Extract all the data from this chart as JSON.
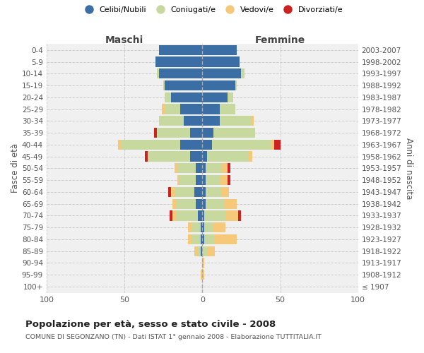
{
  "age_groups": [
    "0-4",
    "5-9",
    "10-14",
    "15-19",
    "20-24",
    "25-29",
    "30-34",
    "35-39",
    "40-44",
    "45-49",
    "50-54",
    "55-59",
    "60-64",
    "65-69",
    "70-74",
    "75-79",
    "80-84",
    "85-89",
    "90-94",
    "95-99",
    "100+"
  ],
  "birth_years": [
    "2003-2007",
    "1998-2002",
    "1993-1997",
    "1988-1992",
    "1983-1987",
    "1978-1982",
    "1973-1977",
    "1968-1972",
    "1963-1967",
    "1958-1962",
    "1953-1957",
    "1948-1952",
    "1943-1947",
    "1938-1942",
    "1933-1937",
    "1928-1932",
    "1923-1927",
    "1918-1922",
    "1913-1917",
    "1908-1912",
    "≤ 1907"
  ],
  "maschi_celibi": [
    28,
    30,
    28,
    24,
    20,
    14,
    12,
    8,
    14,
    8,
    4,
    4,
    5,
    4,
    3,
    1,
    1,
    1,
    0,
    0,
    0
  ],
  "maschi_coniugati": [
    0,
    0,
    1,
    1,
    4,
    10,
    16,
    21,
    38,
    27,
    12,
    11,
    13,
    13,
    14,
    6,
    6,
    2,
    0,
    0,
    0
  ],
  "maschi_vedovi": [
    0,
    0,
    0,
    0,
    0,
    2,
    0,
    0,
    2,
    0,
    2,
    1,
    2,
    2,
    2,
    2,
    2,
    2,
    0,
    1,
    0
  ],
  "maschi_divorziati": [
    0,
    0,
    0,
    0,
    0,
    0,
    0,
    2,
    0,
    2,
    0,
    0,
    2,
    0,
    2,
    0,
    0,
    0,
    0,
    0,
    0
  ],
  "femmine_nubili": [
    22,
    24,
    25,
    21,
    16,
    11,
    11,
    7,
    6,
    3,
    2,
    2,
    2,
    2,
    1,
    1,
    1,
    0,
    0,
    0,
    0
  ],
  "femmine_coniugate": [
    0,
    0,
    2,
    1,
    4,
    10,
    20,
    27,
    38,
    27,
    10,
    9,
    10,
    12,
    14,
    6,
    7,
    3,
    0,
    0,
    0
  ],
  "femmine_vedove": [
    0,
    0,
    0,
    0,
    0,
    0,
    2,
    0,
    2,
    2,
    4,
    5,
    5,
    8,
    8,
    8,
    14,
    5,
    1,
    1,
    0
  ],
  "femmine_divorziate": [
    0,
    0,
    0,
    0,
    0,
    0,
    0,
    0,
    4,
    0,
    2,
    2,
    0,
    0,
    2,
    0,
    0,
    0,
    0,
    0,
    0
  ],
  "color_celibi": "#3a6ea5",
  "color_coniugati": "#c8d9a0",
  "color_vedovi": "#f5c87a",
  "color_divorziati": "#cc2222",
  "xlim_min": -100,
  "xlim_max": 100,
  "xticks": [
    -100,
    -50,
    0,
    50,
    100
  ],
  "xticklabels": [
    "100",
    "50",
    "0",
    "50",
    "100"
  ],
  "title": "Popolazione per età, sesso e stato civile - 2008",
  "subtitle": "COMUNE DI SEGONZANO (TN) - Dati ISTAT 1° gennaio 2008 - Elaborazione TUTTITALIA.IT",
  "ylabel_left": "Fasce di età",
  "ylabel_right": "Anni di nascita",
  "label_maschi": "Maschi",
  "label_femmine": "Femmine",
  "legend_labels": [
    "Celibi/Nubili",
    "Coniugati/e",
    "Vedovi/e",
    "Divorziati/e"
  ],
  "bg_color": "#f0f0f0",
  "bar_height": 0.85
}
